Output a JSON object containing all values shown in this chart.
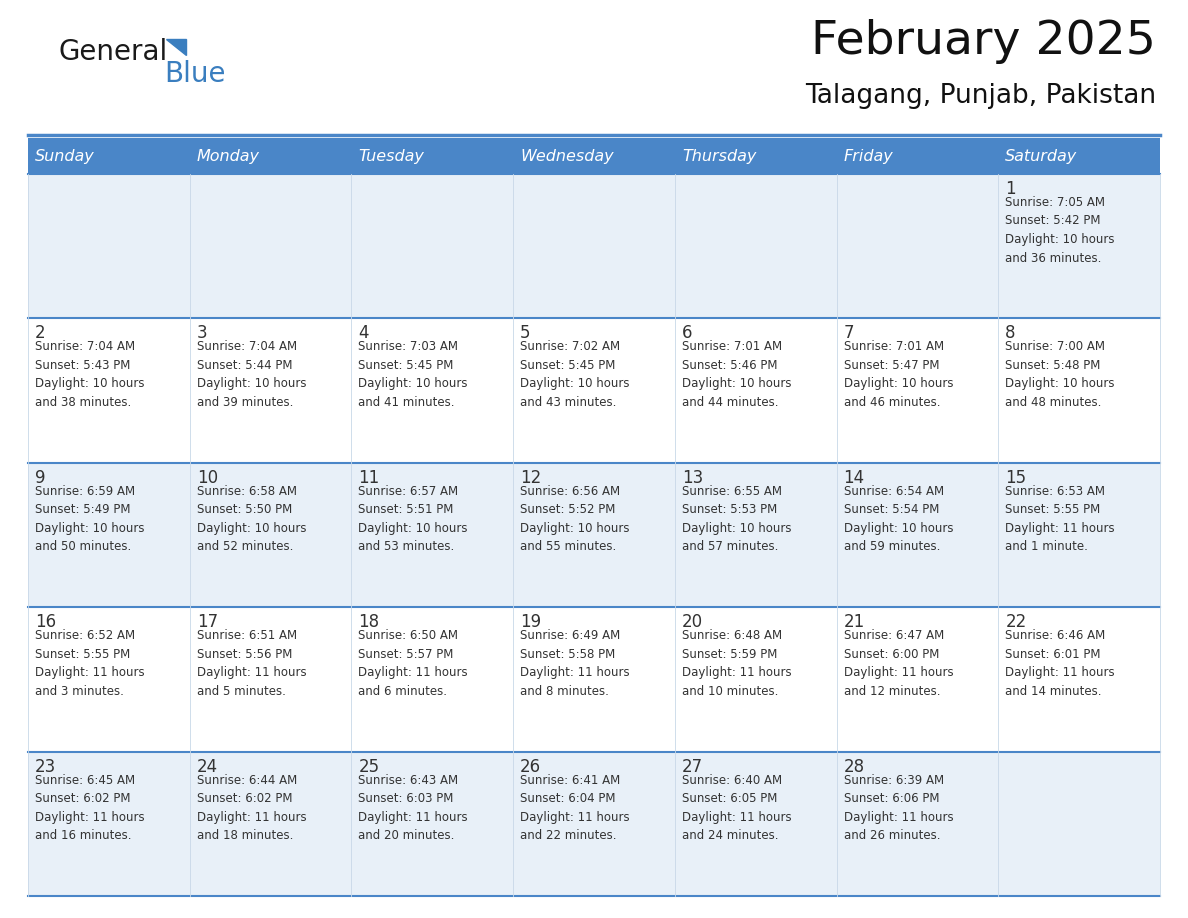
{
  "title": "February 2025",
  "subtitle": "Talagang, Punjab, Pakistan",
  "header_color": "#4a86c8",
  "header_text_color": "#ffffff",
  "cell_bg_light": "#e8f0f8",
  "cell_bg_white": "#ffffff",
  "border_color": "#4a86c8",
  "text_color": "#333333",
  "day_headers": [
    "Sunday",
    "Monday",
    "Tuesday",
    "Wednesday",
    "Thursday",
    "Friday",
    "Saturday"
  ],
  "weeks": [
    [
      {
        "day": "",
        "info": ""
      },
      {
        "day": "",
        "info": ""
      },
      {
        "day": "",
        "info": ""
      },
      {
        "day": "",
        "info": ""
      },
      {
        "day": "",
        "info": ""
      },
      {
        "day": "",
        "info": ""
      },
      {
        "day": "1",
        "info": "Sunrise: 7:05 AM\nSunset: 5:42 PM\nDaylight: 10 hours\nand 36 minutes."
      }
    ],
    [
      {
        "day": "2",
        "info": "Sunrise: 7:04 AM\nSunset: 5:43 PM\nDaylight: 10 hours\nand 38 minutes."
      },
      {
        "day": "3",
        "info": "Sunrise: 7:04 AM\nSunset: 5:44 PM\nDaylight: 10 hours\nand 39 minutes."
      },
      {
        "day": "4",
        "info": "Sunrise: 7:03 AM\nSunset: 5:45 PM\nDaylight: 10 hours\nand 41 minutes."
      },
      {
        "day": "5",
        "info": "Sunrise: 7:02 AM\nSunset: 5:45 PM\nDaylight: 10 hours\nand 43 minutes."
      },
      {
        "day": "6",
        "info": "Sunrise: 7:01 AM\nSunset: 5:46 PM\nDaylight: 10 hours\nand 44 minutes."
      },
      {
        "day": "7",
        "info": "Sunrise: 7:01 AM\nSunset: 5:47 PM\nDaylight: 10 hours\nand 46 minutes."
      },
      {
        "day": "8",
        "info": "Sunrise: 7:00 AM\nSunset: 5:48 PM\nDaylight: 10 hours\nand 48 minutes."
      }
    ],
    [
      {
        "day": "9",
        "info": "Sunrise: 6:59 AM\nSunset: 5:49 PM\nDaylight: 10 hours\nand 50 minutes."
      },
      {
        "day": "10",
        "info": "Sunrise: 6:58 AM\nSunset: 5:50 PM\nDaylight: 10 hours\nand 52 minutes."
      },
      {
        "day": "11",
        "info": "Sunrise: 6:57 AM\nSunset: 5:51 PM\nDaylight: 10 hours\nand 53 minutes."
      },
      {
        "day": "12",
        "info": "Sunrise: 6:56 AM\nSunset: 5:52 PM\nDaylight: 10 hours\nand 55 minutes."
      },
      {
        "day": "13",
        "info": "Sunrise: 6:55 AM\nSunset: 5:53 PM\nDaylight: 10 hours\nand 57 minutes."
      },
      {
        "day": "14",
        "info": "Sunrise: 6:54 AM\nSunset: 5:54 PM\nDaylight: 10 hours\nand 59 minutes."
      },
      {
        "day": "15",
        "info": "Sunrise: 6:53 AM\nSunset: 5:55 PM\nDaylight: 11 hours\nand 1 minute."
      }
    ],
    [
      {
        "day": "16",
        "info": "Sunrise: 6:52 AM\nSunset: 5:55 PM\nDaylight: 11 hours\nand 3 minutes."
      },
      {
        "day": "17",
        "info": "Sunrise: 6:51 AM\nSunset: 5:56 PM\nDaylight: 11 hours\nand 5 minutes."
      },
      {
        "day": "18",
        "info": "Sunrise: 6:50 AM\nSunset: 5:57 PM\nDaylight: 11 hours\nand 6 minutes."
      },
      {
        "day": "19",
        "info": "Sunrise: 6:49 AM\nSunset: 5:58 PM\nDaylight: 11 hours\nand 8 minutes."
      },
      {
        "day": "20",
        "info": "Sunrise: 6:48 AM\nSunset: 5:59 PM\nDaylight: 11 hours\nand 10 minutes."
      },
      {
        "day": "21",
        "info": "Sunrise: 6:47 AM\nSunset: 6:00 PM\nDaylight: 11 hours\nand 12 minutes."
      },
      {
        "day": "22",
        "info": "Sunrise: 6:46 AM\nSunset: 6:01 PM\nDaylight: 11 hours\nand 14 minutes."
      }
    ],
    [
      {
        "day": "23",
        "info": "Sunrise: 6:45 AM\nSunset: 6:02 PM\nDaylight: 11 hours\nand 16 minutes."
      },
      {
        "day": "24",
        "info": "Sunrise: 6:44 AM\nSunset: 6:02 PM\nDaylight: 11 hours\nand 18 minutes."
      },
      {
        "day": "25",
        "info": "Sunrise: 6:43 AM\nSunset: 6:03 PM\nDaylight: 11 hours\nand 20 minutes."
      },
      {
        "day": "26",
        "info": "Sunrise: 6:41 AM\nSunset: 6:04 PM\nDaylight: 11 hours\nand 22 minutes."
      },
      {
        "day": "27",
        "info": "Sunrise: 6:40 AM\nSunset: 6:05 PM\nDaylight: 11 hours\nand 24 minutes."
      },
      {
        "day": "28",
        "info": "Sunrise: 6:39 AM\nSunset: 6:06 PM\nDaylight: 11 hours\nand 26 minutes."
      },
      {
        "day": "",
        "info": ""
      }
    ]
  ],
  "logo_color_general": "#1a1a1a",
  "logo_color_blue": "#3a7ebf",
  "logo_triangle_color": "#3a7ebf",
  "fig_width": 11.88,
  "fig_height": 9.18,
  "dpi": 100
}
